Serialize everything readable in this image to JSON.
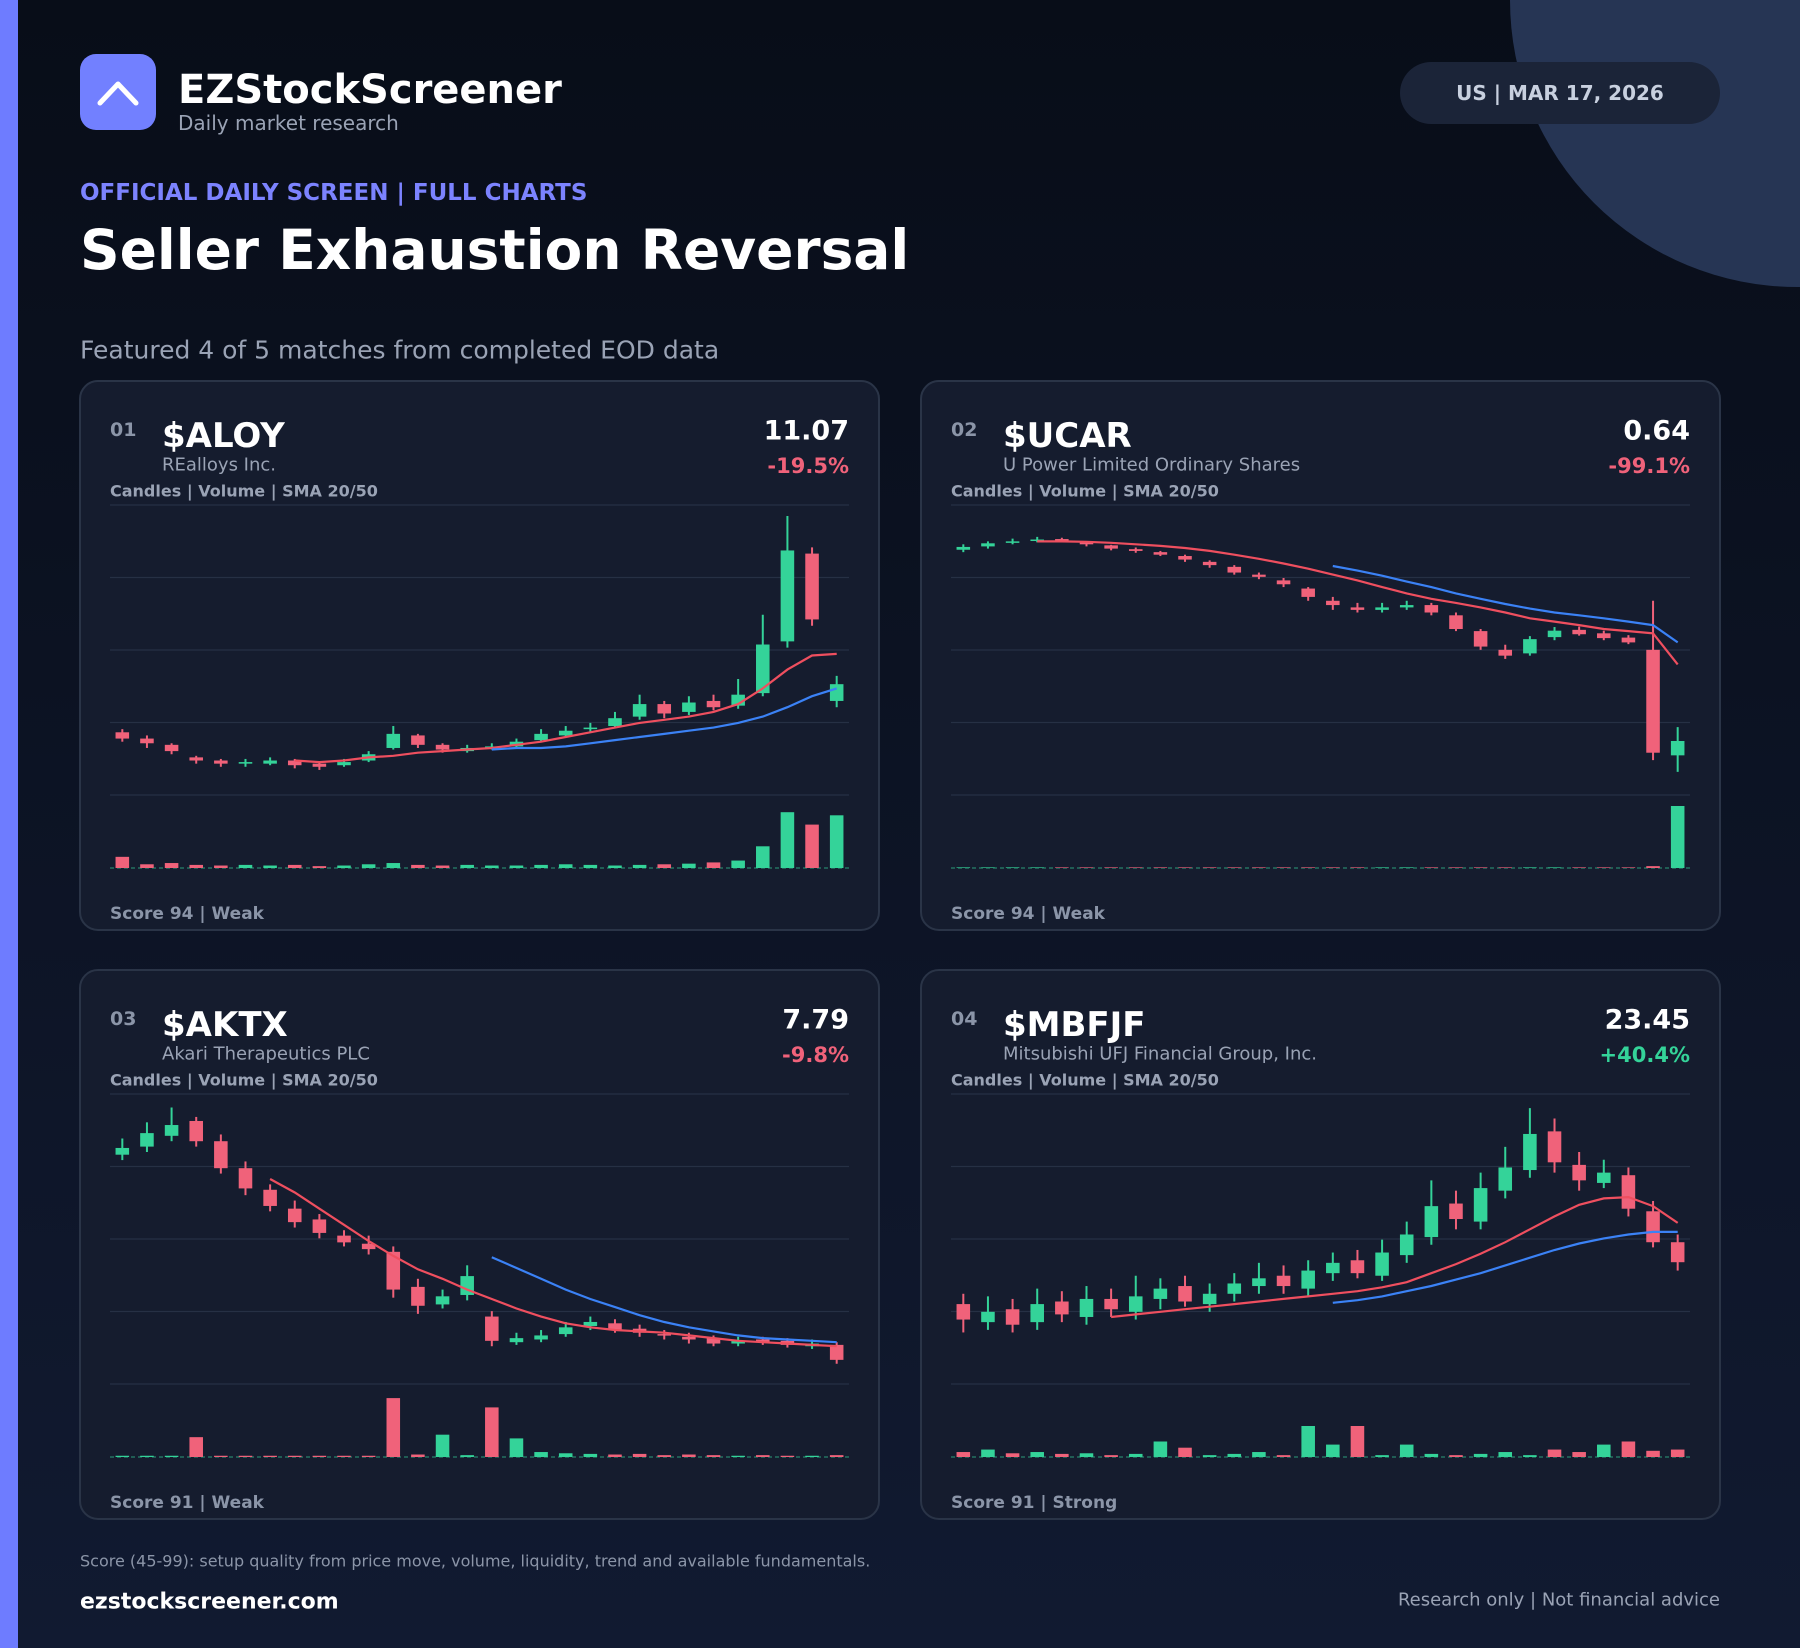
{
  "header": {
    "brand": "EZStockScreener",
    "tagline": "Daily market research",
    "badge": "US  |  MAR 17, 2026",
    "kicker": "OFFICIAL DAILY SCREEN  |  FULL CHARTS",
    "title": "Seller Exhaustion Reversal",
    "subtitle": "Featured 4 of 5 matches from completed EOD data"
  },
  "chart_data": [
    {
      "type": "candlestick",
      "number": "01",
      "ticker": "$ALOY",
      "company": "REalloys Inc.",
      "legend": "Candles  |  Volume  |  SMA 20/50",
      "price": 11.07,
      "change": "-19.5%",
      "direction": "down",
      "score": "Score 94  |  Weak",
      "ylim": [
        4,
        22.5
      ],
      "log": false,
      "vlim": [
        0,
        100
      ],
      "colors": {
        "up": "#34d399",
        "down": "#f0627a",
        "sma20": "#ef4f5f",
        "sma50": "#3b82f6"
      },
      "open": [
        8.0,
        7.6,
        7.2,
        6.4,
        6.2,
        6.0,
        6.0,
        6.2,
        6.0,
        5.9,
        6.2,
        7.0,
        7.8,
        7.2,
        6.8,
        7.0,
        7.1,
        7.5,
        7.8,
        8.2,
        8.4,
        9.0,
        9.8,
        9.3,
        10.0,
        9.7,
        10.5,
        13.8,
        19.4,
        10.0
      ],
      "high": [
        8.2,
        7.8,
        7.3,
        6.5,
        6.3,
        6.3,
        6.4,
        6.3,
        6.1,
        6.3,
        6.8,
        8.4,
        7.9,
        7.3,
        7.2,
        7.3,
        7.6,
        8.2,
        8.4,
        8.6,
        9.3,
        10.4,
        10.0,
        10.3,
        10.4,
        11.4,
        15.5,
        21.8,
        19.8,
        11.6
      ],
      "low": [
        7.4,
        7.0,
        6.6,
        6.0,
        5.8,
        5.8,
        5.9,
        5.7,
        5.6,
        5.8,
        6.1,
        6.9,
        7.0,
        6.7,
        6.7,
        6.9,
        7.0,
        7.4,
        7.7,
        8.0,
        8.3,
        8.8,
        8.9,
        9.1,
        9.4,
        9.5,
        10.3,
        13.4,
        14.8,
        9.6
      ],
      "close": [
        7.6,
        7.3,
        6.8,
        6.2,
        6.0,
        6.1,
        6.2,
        5.9,
        5.8,
        6.1,
        6.6,
        7.9,
        7.2,
        6.9,
        7.0,
        7.1,
        7.4,
        7.9,
        8.1,
        8.3,
        8.9,
        9.8,
        9.2,
        9.9,
        9.6,
        10.4,
        13.6,
        19.6,
        15.2,
        11.07
      ],
      "volume": [
        18,
        6,
        8,
        5,
        4,
        5,
        4,
        5,
        3,
        4,
        6,
        8,
        5,
        4,
        5,
        4,
        4,
        5,
        6,
        5,
        4,
        5,
        6,
        7,
        9,
        12,
        35,
        90,
        70,
        85
      ],
      "sma20": [
        null,
        null,
        null,
        null,
        null,
        null,
        null,
        6.2,
        6.1,
        6.2,
        6.4,
        6.5,
        6.7,
        6.8,
        6.9,
        7.0,
        7.2,
        7.4,
        7.7,
        8.0,
        8.3,
        8.6,
        8.8,
        9.0,
        9.3,
        9.8,
        10.8,
        12.0,
        12.9,
        13.0
      ],
      "sma50": [
        null,
        null,
        null,
        null,
        null,
        null,
        null,
        null,
        null,
        null,
        null,
        null,
        null,
        null,
        null,
        6.9,
        7.0,
        7.0,
        7.1,
        7.3,
        7.5,
        7.7,
        7.9,
        8.1,
        8.3,
        8.6,
        9.0,
        9.6,
        10.3,
        10.8
      ]
    },
    {
      "type": "candlestick",
      "number": "02",
      "ticker": "$UCAR",
      "company": "U Power Limited Ordinary Shares",
      "legend": "Candles  |  Volume  |  SMA 20/50",
      "price": 0.64,
      "change": "-99.1%",
      "direction": "down",
      "score": "Score 94  |  Weak",
      "ylim": [
        0.17,
        210
      ],
      "log": true,
      "vlim": [
        0,
        100
      ],
      "colors": {
        "up": "#34d399",
        "down": "#f0627a",
        "sma20": "#ef4f5f",
        "sma50": "#3b82f6"
      },
      "open": [
        70,
        76,
        83,
        87,
        91,
        84,
        78,
        71,
        66,
        60,
        52,
        46,
        38,
        33,
        27,
        20,
        17,
        16,
        17,
        18,
        14,
        9.5,
        6.0,
        5.5,
        8.2,
        9.8,
        9.0,
        8.1,
        6.0,
        0.45
      ],
      "high": [
        80,
        86,
        92,
        96,
        94,
        86,
        79,
        74,
        68,
        62,
        54,
        48,
        40,
        35,
        28,
        22,
        19,
        19,
        20,
        19,
        15,
        10,
        6.8,
        8.4,
        10.5,
        10.6,
        9.6,
        8.6,
        20,
        0.9
      ],
      "low": [
        66,
        72,
        80,
        84,
        84,
        76,
        69,
        65,
        60,
        52,
        45,
        38,
        34,
        28,
        20,
        16,
        15,
        15,
        16,
        14,
        9.5,
        6.0,
        4.8,
        5.2,
        7.6,
        8.5,
        7.6,
        6.9,
        0.4,
        0.3
      ],
      "close": [
        75,
        82,
        86,
        90,
        88,
        80,
        72,
        68,
        62,
        55,
        48,
        40,
        36,
        30,
        22,
        18,
        16,
        17,
        18,
        15,
        10,
        6.5,
        5.2,
        7.8,
        9.6,
        8.8,
        8.0,
        7.2,
        0.48,
        0.64
      ],
      "volume": [
        1,
        1,
        1,
        1,
        1,
        1,
        1,
        1,
        1,
        1,
        1,
        1,
        1,
        1,
        1,
        1,
        1,
        1,
        1,
        1,
        1,
        1,
        1,
        1,
        1,
        1,
        1,
        1,
        3,
        100
      ],
      "sma20": [
        null,
        null,
        null,
        86,
        86,
        85,
        83,
        80,
        77,
        73,
        68,
        62,
        56,
        50,
        44,
        38,
        33,
        28,
        24,
        21,
        19,
        17,
        15,
        13,
        12,
        11,
        10,
        9.5,
        9.0,
        4.2
      ],
      "sma50": [
        null,
        null,
        null,
        null,
        null,
        null,
        null,
        null,
        null,
        null,
        null,
        null,
        null,
        null,
        null,
        47,
        42,
        37,
        32,
        28,
        24,
        21,
        18.5,
        16.5,
        15,
        14,
        13,
        12,
        11,
        7.2
      ]
    },
    {
      "type": "candlestick",
      "number": "03",
      "ticker": "$AKTX",
      "company": "Akari Therapeutics PLC",
      "legend": "Candles  |  Volume  |  SMA 20/50",
      "price": 7.79,
      "change": "-9.8%",
      "direction": "down",
      "score": "Score 91  |  Weak",
      "ylim": [
        6,
        27.5
      ],
      "log": false,
      "vlim": [
        0,
        100
      ],
      "colors": {
        "up": "#34d399",
        "down": "#f0627a",
        "sma20": "#ef4f5f",
        "sma50": "#3b82f6"
      },
      "open": [
        23.0,
        23.6,
        24.4,
        25.5,
        24.0,
        22.0,
        20.4,
        19.0,
        18.2,
        17.0,
        16.4,
        15.8,
        13.2,
        11.9,
        12.6,
        11.0,
        9.1,
        9.3,
        9.7,
        10.3,
        10.5,
        10.1,
        9.7,
        9.5,
        9.4,
        9.0,
        9.3,
        9.2,
        8.8,
        8.9
      ],
      "high": [
        24.2,
        25.4,
        26.5,
        25.8,
        24.5,
        22.5,
        20.8,
        19.6,
        18.6,
        17.4,
        17.0,
        16.2,
        13.8,
        13.0,
        14.8,
        11.4,
        9.8,
        10.0,
        10.6,
        11.0,
        10.8,
        10.4,
        10.0,
        9.8,
        9.6,
        9.5,
        9.5,
        9.4,
        9.3,
        9.1
      ],
      "low": [
        22.6,
        23.2,
        24.0,
        23.6,
        21.6,
        20.0,
        18.8,
        17.6,
        16.8,
        16.2,
        15.6,
        12.4,
        11.2,
        11.6,
        12.2,
        8.8,
        8.9,
        9.1,
        9.5,
        10.0,
        9.8,
        9.5,
        9.3,
        9.0,
        8.8,
        8.8,
        8.9,
        8.7,
        8.6,
        7.5
      ],
      "close": [
        23.5,
        24.6,
        25.2,
        24.0,
        22.0,
        20.5,
        19.2,
        18.0,
        17.2,
        16.5,
        16.0,
        13.0,
        11.8,
        12.5,
        14.0,
        9.2,
        9.4,
        9.6,
        10.2,
        10.6,
        10.0,
        9.8,
        9.6,
        9.3,
        9.0,
        9.2,
        9.1,
        8.9,
        9.0,
        7.79
      ],
      "volume": [
        2,
        2,
        2,
        32,
        2,
        2,
        2,
        2,
        2,
        2,
        2,
        95,
        4,
        36,
        3,
        80,
        30,
        8,
        6,
        5,
        4,
        5,
        3,
        4,
        3,
        2,
        3,
        2,
        2,
        3
      ],
      "sma20": [
        null,
        null,
        null,
        null,
        null,
        null,
        21.2,
        20.2,
        19.0,
        17.8,
        16.6,
        15.5,
        14.5,
        13.8,
        13.0,
        12.3,
        11.6,
        11.0,
        10.5,
        10.2,
        10.0,
        9.9,
        9.8,
        9.6,
        9.4,
        9.2,
        9.1,
        9.0,
        8.9,
        8.8
      ],
      "sma50": [
        null,
        null,
        null,
        null,
        null,
        null,
        null,
        null,
        null,
        null,
        null,
        null,
        null,
        null,
        null,
        15.4,
        14.6,
        13.8,
        13.0,
        12.3,
        11.7,
        11.1,
        10.6,
        10.2,
        9.9,
        9.6,
        9.4,
        9.3,
        9.2,
        9.1
      ]
    },
    {
      "type": "candlestick",
      "number": "04",
      "ticker": "$MBFJF",
      "company": "Mitsubishi UFJ Financial Group, Inc.",
      "legend": "Candles  |  Volume  |  SMA 20/50",
      "price": 23.45,
      "change": "+40.4%",
      "direction": "up",
      "score": "Score 91  |  Strong",
      "ylim": [
        14,
        36.5
      ],
      "log": false,
      "vlim": [
        0,
        100
      ],
      "colors": {
        "up": "#34d399",
        "down": "#f0627a",
        "sma20": "#ef4f5f",
        "sma50": "#3b82f6"
      },
      "open": [
        20.2,
        18.8,
        19.8,
        18.8,
        20.4,
        19.2,
        20.6,
        19.6,
        20.6,
        21.6,
        20.2,
        21.0,
        21.6,
        22.4,
        21.4,
        22.6,
        23.6,
        22.4,
        24.0,
        25.4,
        28.0,
        26.6,
        29.0,
        30.6,
        33.6,
        31.0,
        29.6,
        30.2,
        27.4,
        25.0
      ],
      "high": [
        21.0,
        20.8,
        20.6,
        21.4,
        21.2,
        21.6,
        21.4,
        22.4,
        22.2,
        22.4,
        21.8,
        22.6,
        23.4,
        23.2,
        23.6,
        24.2,
        24.4,
        25.2,
        26.6,
        29.8,
        29.0,
        30.4,
        32.4,
        35.4,
        34.6,
        32.0,
        31.4,
        30.8,
        28.2,
        25.6
      ],
      "low": [
        18.0,
        18.2,
        18.0,
        18.2,
        18.8,
        18.6,
        19.2,
        19.0,
        19.8,
        20.0,
        19.6,
        20.4,
        21.0,
        21.0,
        20.8,
        22.0,
        22.2,
        22.0,
        23.4,
        24.8,
        26.0,
        26.0,
        28.4,
        30.0,
        30.4,
        29.0,
        29.2,
        27.0,
        24.6,
        22.8
      ],
      "close": [
        19.0,
        19.6,
        18.6,
        20.2,
        19.4,
        20.6,
        19.8,
        20.8,
        21.4,
        20.4,
        21.0,
        21.8,
        22.2,
        21.6,
        22.8,
        23.4,
        22.6,
        24.2,
        25.6,
        27.8,
        26.8,
        29.2,
        30.8,
        33.4,
        31.2,
        29.8,
        30.4,
        27.6,
        25.0,
        23.45
      ],
      "volume": [
        8,
        12,
        6,
        8,
        5,
        6,
        3,
        5,
        25,
        15,
        3,
        5,
        8,
        3,
        50,
        20,
        50,
        3,
        20,
        5,
        3,
        5,
        8,
        3,
        12,
        8,
        20,
        25,
        10,
        12
      ],
      "sma20": [
        null,
        null,
        null,
        null,
        null,
        null,
        19.2,
        19.4,
        19.6,
        19.8,
        20.0,
        20.2,
        20.4,
        20.6,
        20.8,
        21.0,
        21.2,
        21.5,
        21.9,
        22.6,
        23.3,
        24.1,
        25.0,
        26.0,
        27.0,
        27.9,
        28.4,
        28.5,
        27.8,
        26.5
      ],
      "sma50": [
        null,
        null,
        null,
        null,
        null,
        null,
        null,
        null,
        null,
        null,
        null,
        null,
        null,
        null,
        null,
        20.3,
        20.5,
        20.8,
        21.2,
        21.6,
        22.1,
        22.6,
        23.2,
        23.8,
        24.4,
        24.9,
        25.3,
        25.6,
        25.8,
        25.8
      ]
    }
  ],
  "footer": {
    "note": "Score (45-99): setup quality from price move, volume, liquidity, trend and available fundamentals.",
    "site": "ezstockscreener.com",
    "disclaimer": "Research only  |  Not financial advice"
  }
}
